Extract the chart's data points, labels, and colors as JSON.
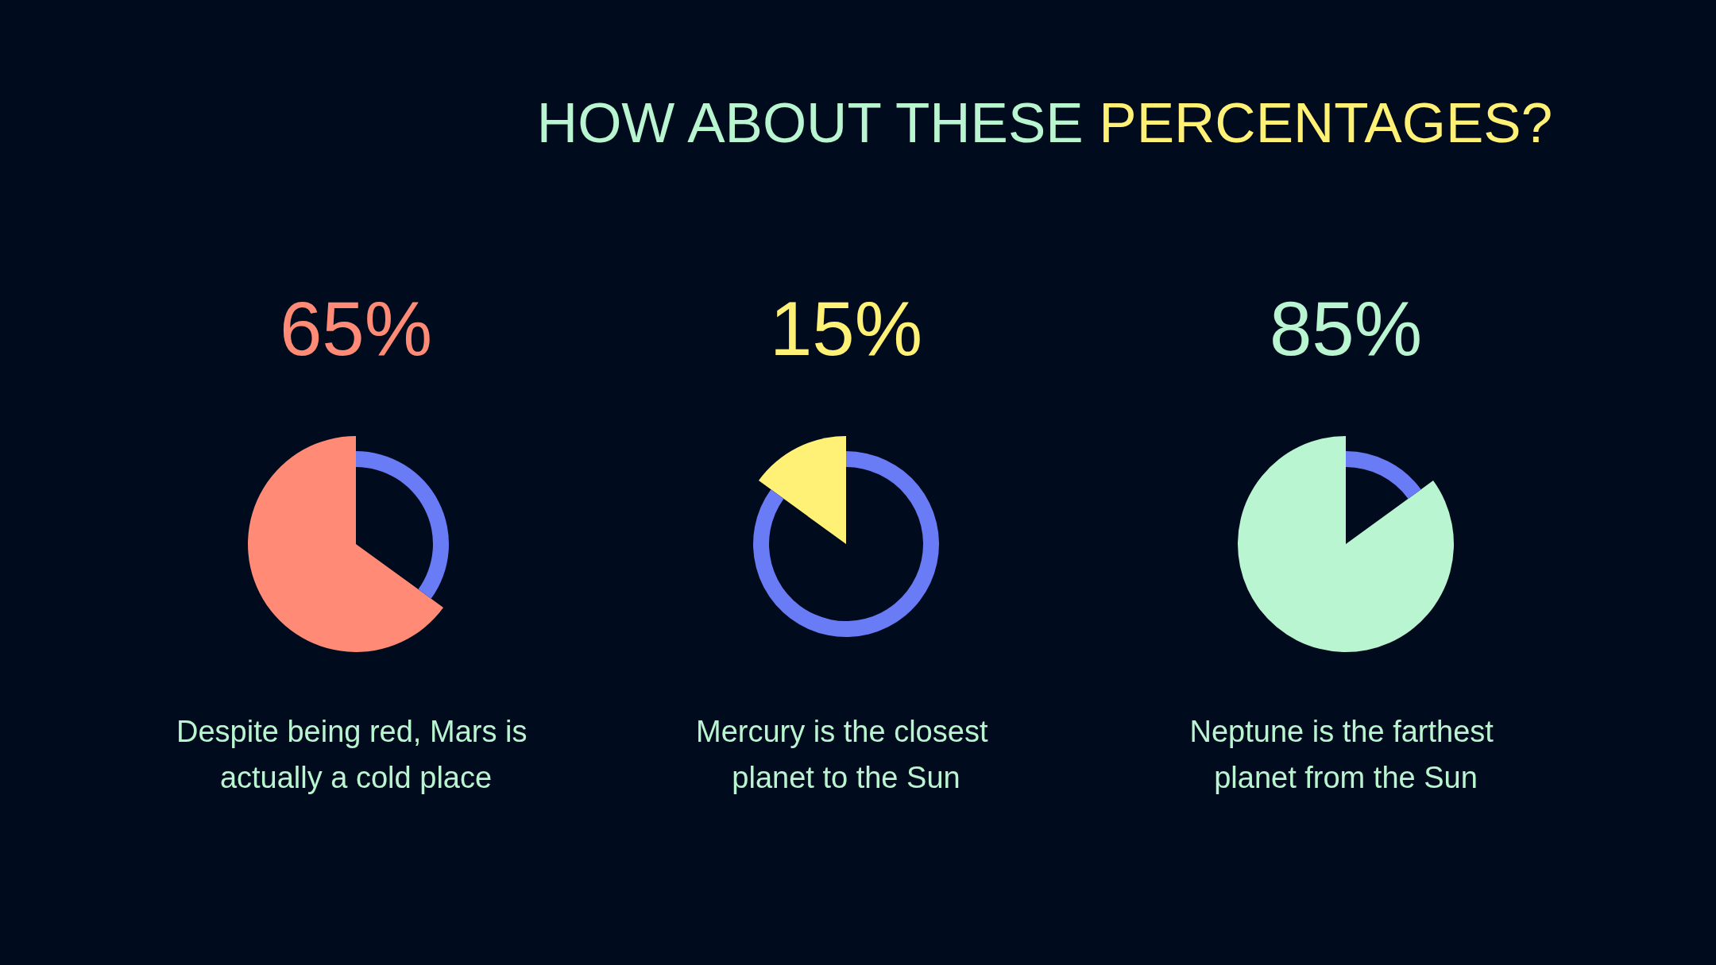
{
  "chart_data": [
    {
      "type": "pie",
      "title": "HOW ABOUT THESE PERCENTAGES?",
      "categories": [
        null,
        null
      ],
      "values": [
        65,
        35
      ],
      "colors": [
        "#ff8a75",
        "#6a7cf5"
      ],
      "value_labels": [
        "65%",
        null
      ],
      "annotations": [
        "Despite being red, Mars is actually a cold place"
      ]
    },
    {
      "type": "pie",
      "categories": [
        null,
        null
      ],
      "values": [
        15,
        85
      ],
      "colors": [
        "#fff176",
        "#6a7cf5"
      ],
      "value_labels": [
        "15%",
        null
      ],
      "annotations": [
        "Mercury is the closest planet to the Sun"
      ]
    },
    {
      "type": "pie",
      "categories": [
        null,
        null
      ],
      "values": [
        85,
        15
      ],
      "colors": [
        "#b9f5d0",
        "#6a7cf5"
      ],
      "value_labels": [
        "85%",
        null
      ],
      "annotations": [
        "Neptune is the farthest planet from the Sun"
      ]
    }
  ]
}
